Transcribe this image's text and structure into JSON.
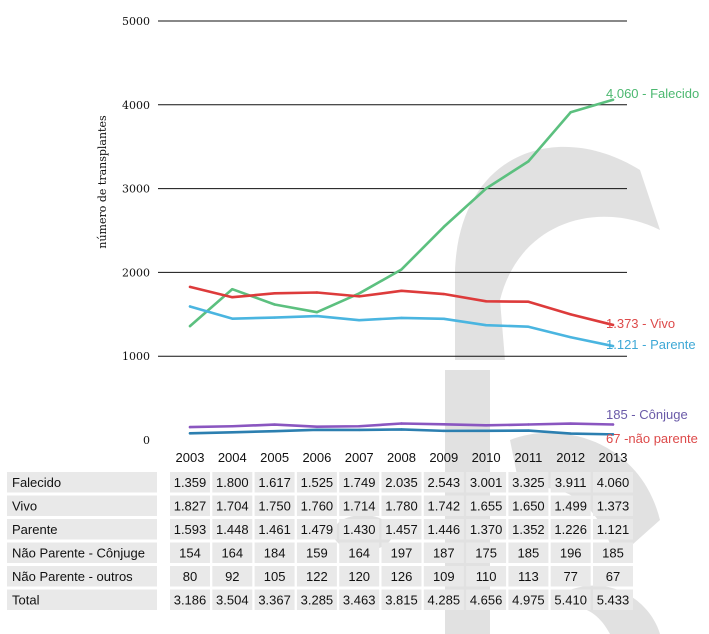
{
  "chart_data": {
    "type": "line",
    "ylabel": "número de transplantes",
    "ylim": [
      0,
      5000
    ],
    "yticks": [
      0,
      1000,
      2000,
      3000,
      4000,
      5000
    ],
    "ytick_labels": [
      "0",
      "1000",
      "2000",
      "3000",
      "4000",
      "5000"
    ],
    "gridlines": [
      1000,
      2000,
      3000,
      4000,
      5000
    ],
    "x": [
      "2003",
      "2004",
      "2005",
      "2006",
      "2007",
      "2008",
      "2009",
      "2010",
      "2011",
      "2012",
      "2013"
    ],
    "series": [
      {
        "name": "Falecido",
        "color": "#5cc07f",
        "end_label": "4.060 - Falecido",
        "end_label_color": "#4cb870",
        "values": [
          1359,
          1800,
          1617,
          1525,
          1749,
          2035,
          2543,
          3001,
          3325,
          3911,
          4060
        ]
      },
      {
        "name": "Vivo",
        "color": "#dd3b3b",
        "end_label": "1.373 - Vivo",
        "end_label_color": "#dd4a4a",
        "values": [
          1827,
          1704,
          1750,
          1760,
          1714,
          1780,
          1742,
          1655,
          1650,
          1499,
          1373
        ]
      },
      {
        "name": "Parente",
        "color": "#4ab5e0",
        "end_label": "1.121 - Parente",
        "end_label_color": "#3ea8d6",
        "values": [
          1593,
          1448,
          1461,
          1479,
          1430,
          1457,
          1446,
          1370,
          1352,
          1226,
          1121
        ]
      },
      {
        "name": "Não Parente - Cônjuge",
        "color": "#8a56c0",
        "end_label": "185 -  Cônjuge",
        "end_label_color": "#6a5aa8",
        "values": [
          154,
          164,
          184,
          159,
          164,
          197,
          187,
          175,
          185,
          196,
          185
        ]
      },
      {
        "name": "Não Parente - outros",
        "color": "#2c7fb0",
        "end_label": "67 -não parente",
        "end_label_color": "#dd4a4a",
        "values": [
          80,
          92,
          105,
          122,
          120,
          126,
          109,
          110,
          113,
          77,
          67
        ]
      }
    ],
    "table": {
      "rows": [
        {
          "label": "Falecido",
          "values": [
            "1.359",
            "1.800",
            "1.617",
            "1.525",
            "1.749",
            "2.035",
            "2.543",
            "3.001",
            "3.325",
            "3.911",
            "4.060"
          ]
        },
        {
          "label": "Vivo",
          "values": [
            "1.827",
            "1.704",
            "1.750",
            "1.760",
            "1.714",
            "1.780",
            "1.742",
            "1.655",
            "1.650",
            "1.499",
            "1.373"
          ]
        },
        {
          "label": "Parente",
          "values": [
            "1.593",
            "1.448",
            "1.461",
            "1.479",
            "1.430",
            "1.457",
            "1.446",
            "1.370",
            "1.352",
            "1.226",
            "1.121"
          ]
        },
        {
          "label": "Não Parente - Cônjuge",
          "values": [
            "154",
            "164",
            "184",
            "159",
            "164",
            "197",
            "187",
            "175",
            "185",
            "196",
            "185"
          ]
        },
        {
          "label": "Não Parente - outros",
          "values": [
            "80",
            "92",
            "105",
            "122",
            "120",
            "126",
            "109",
            "110",
            "113",
            "77",
            "67"
          ]
        },
        {
          "label": "Total",
          "values": [
            "3.186",
            "3.504",
            "3.367",
            "3.285",
            "3.463",
            "3.815",
            "4.285",
            "4.656",
            "4.975",
            "5.410",
            "5.433"
          ]
        }
      ]
    }
  }
}
